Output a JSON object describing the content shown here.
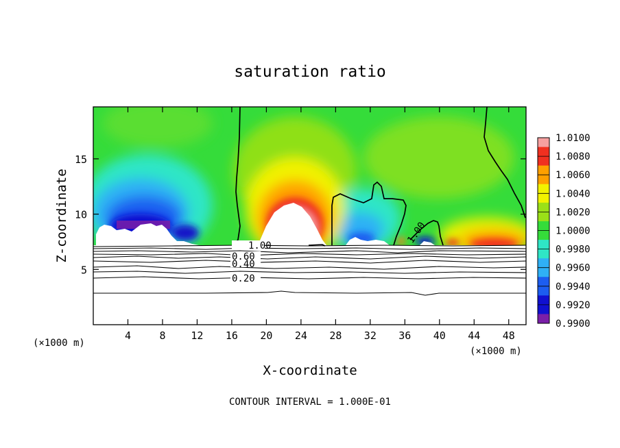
{
  "chart_data": {
    "type": "heatmap",
    "title": "saturation ratio",
    "xlabel": "X-coordinate",
    "ylabel": "Z-coordinate",
    "x_unit": "(×1000 m)",
    "x_unit_right": "(×1000 m)",
    "xlim": [
      0,
      50
    ],
    "ylim": [
      0,
      19.7
    ],
    "x_ticks": [
      4,
      8,
      12,
      16,
      20,
      24,
      28,
      32,
      36,
      40,
      44,
      48
    ],
    "y_ticks": [
      5,
      10,
      15
    ],
    "colorbar": {
      "levels": [
        "0.9900",
        "0.9920",
        "0.9940",
        "0.9960",
        "0.9980",
        "1.0000",
        "1.0020",
        "1.0040",
        "1.0060",
        "1.0080",
        "1.0100"
      ],
      "colors": [
        "#7a1fa8",
        "#1010d0",
        "#1c5df0",
        "#2fb0f5",
        "#2fe6c6",
        "#35dc3a",
        "#9be018",
        "#f2f200",
        "#ffa000",
        "#f03020",
        "#f6a0a0"
      ]
    },
    "contour_labels": [
      {
        "value": "1.00",
        "x": 19.5,
        "z": 7.3
      },
      {
        "value": "0.60",
        "x": 17.8,
        "z": 6.6
      },
      {
        "value": "0.40",
        "x": 17.8,
        "z": 5.5
      },
      {
        "value": "0.20",
        "x": 17.8,
        "z": 4.2
      },
      {
        "value": "1.00",
        "x": 37.5,
        "z": 8.2
      }
    ],
    "footer": "CONTOUR INTERVAL = 1.000E-01",
    "grid": false,
    "legend": "colorbar-right"
  }
}
